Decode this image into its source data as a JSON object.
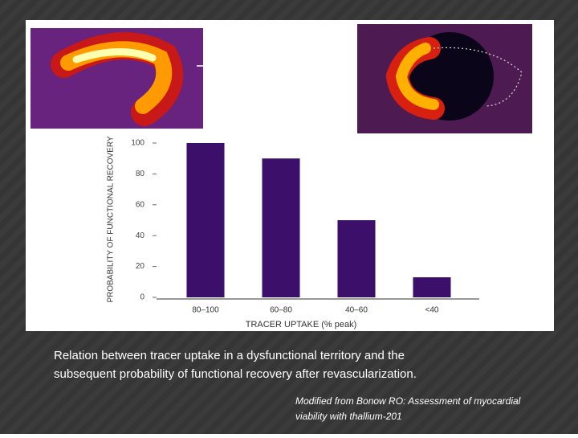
{
  "chart_data": {
    "type": "bar",
    "ylabel": "PROBABILITY OF FUNCTIONAL RECOVERY",
    "xlabel": "TRACER UPTAKE (% peak)",
    "categories": [
      "80–100",
      "60–80",
      "40–60",
      "<40"
    ],
    "values": [
      100,
      90,
      50,
      13
    ],
    "color": "#3b0f6a",
    "ylim": [
      0,
      100
    ],
    "yticks": [
      0,
      20,
      40,
      60,
      80,
      100
    ]
  },
  "caption": [
    "Relation between tracer uptake in a dysfunctional territory and the",
    "subsequent probability of functional recovery after revascularization."
  ],
  "source": [
    "Modified from Bonow RO: Assessment of myocardial",
    "viability with thallium-201"
  ]
}
